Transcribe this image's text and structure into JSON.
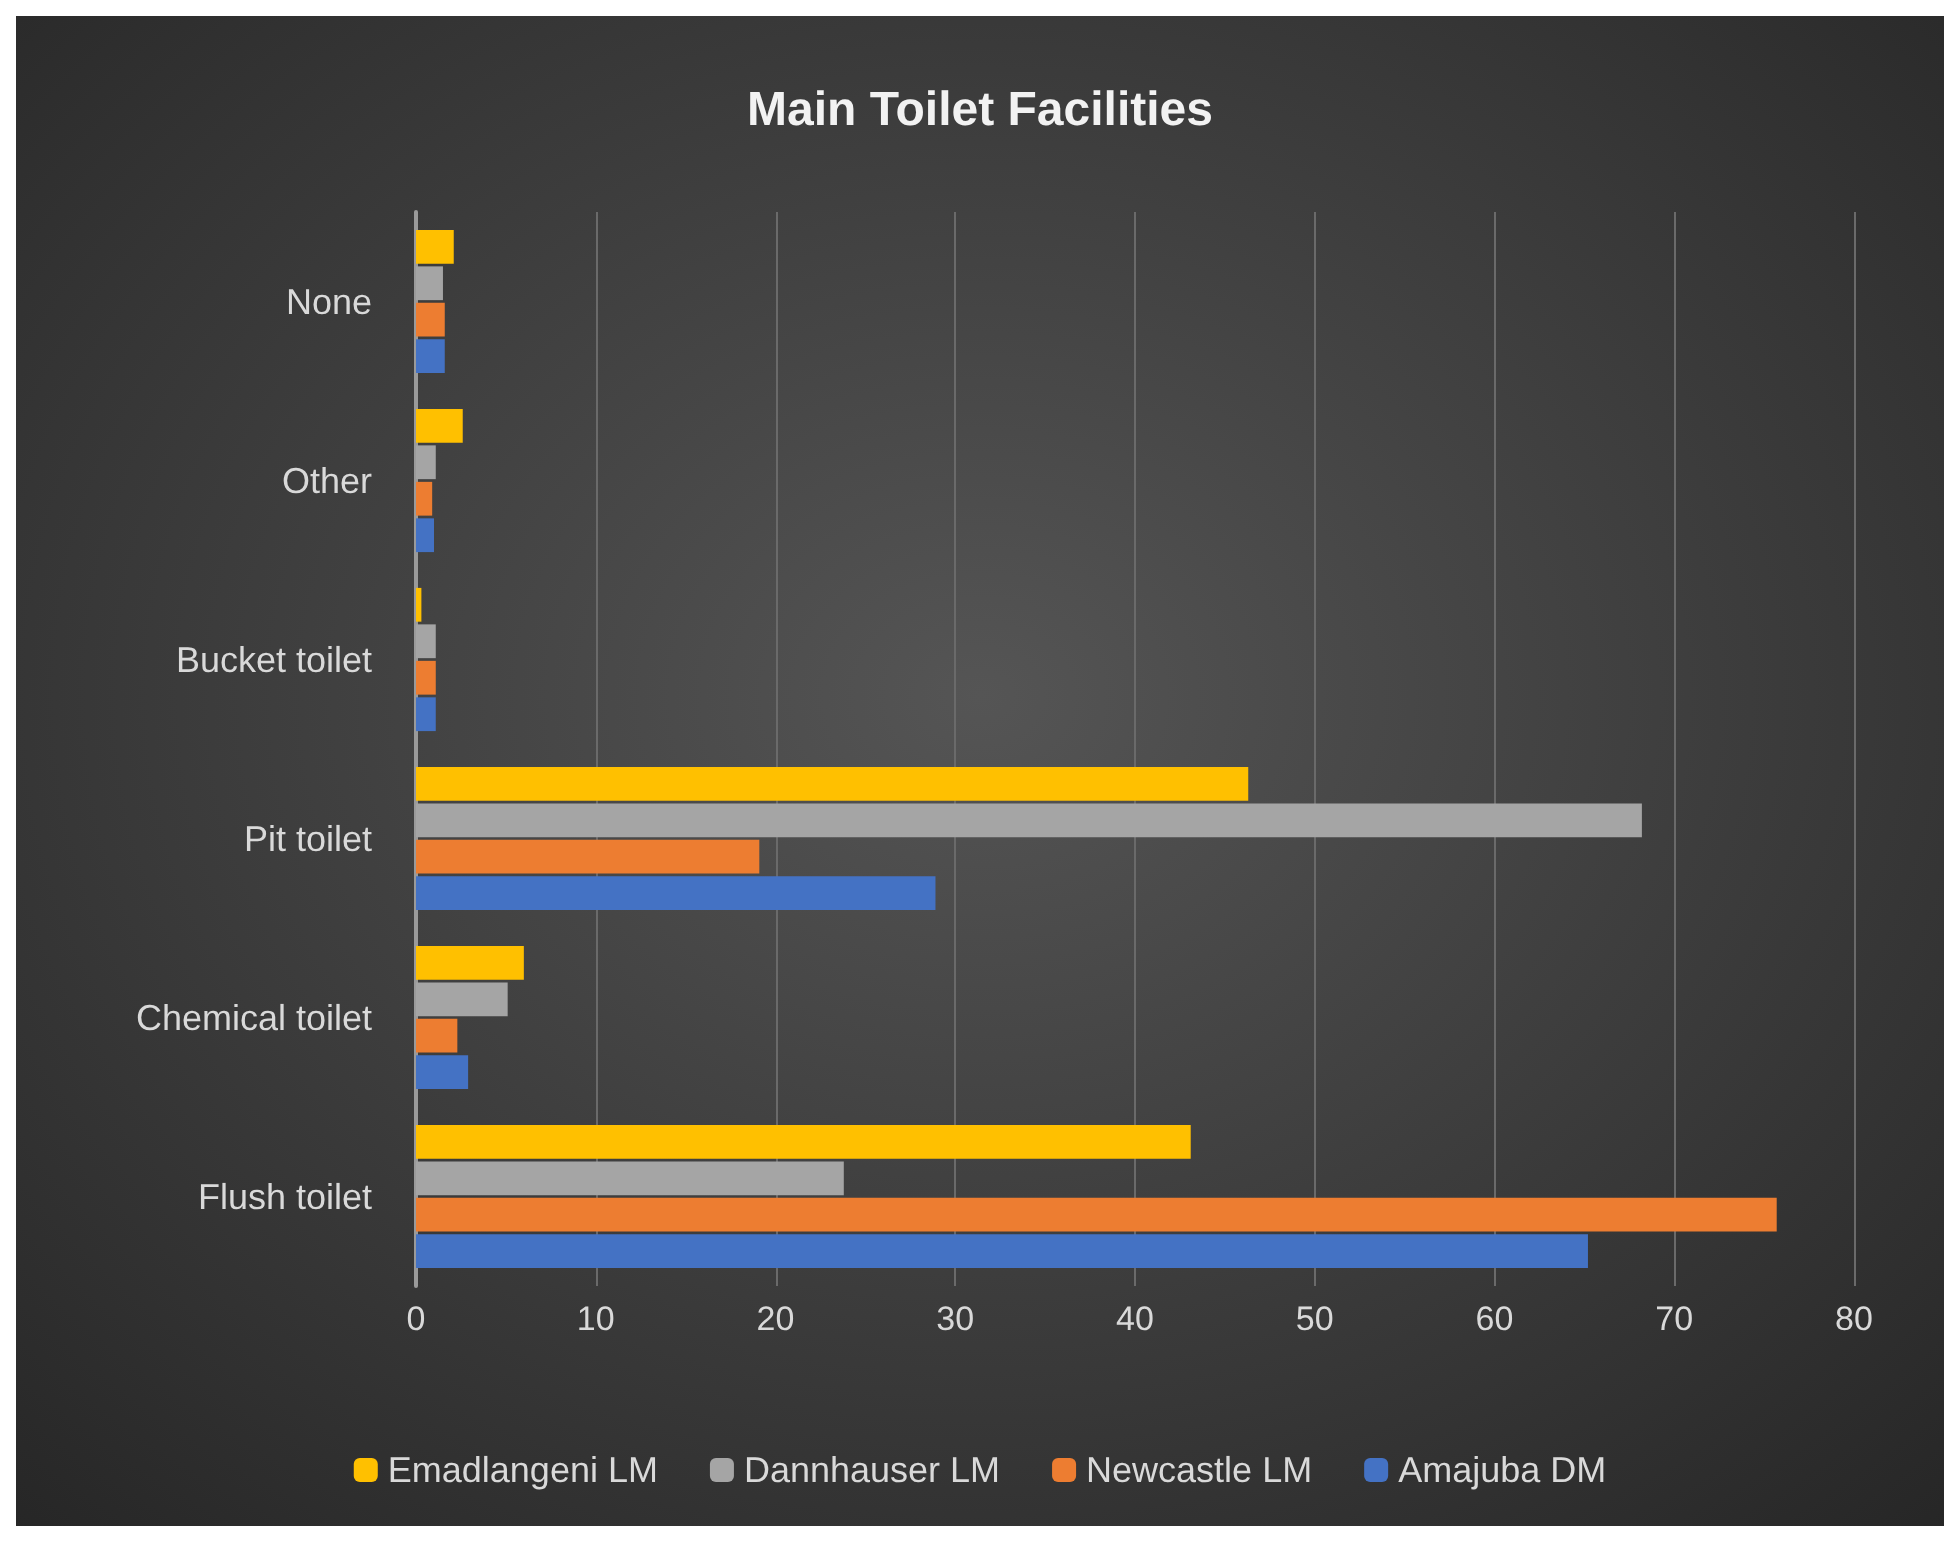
{
  "chart_data": {
    "type": "bar",
    "orientation": "horizontal",
    "title": "Main Toilet Facilities",
    "categories": [
      "None",
      "Other",
      "Bucket toilet",
      "Pit toilet",
      "Chemical toilet",
      "Flush toilet"
    ],
    "series": [
      {
        "name": "Emadlangeni LM",
        "color": "#ffc000",
        "values": [
          2.1,
          2.6,
          0.3,
          46.3,
          6.0,
          43.1
        ]
      },
      {
        "name": "Dannhauser LM",
        "color": "#a5a5a5",
        "values": [
          1.5,
          1.1,
          1.1,
          68.2,
          5.1,
          23.8
        ]
      },
      {
        "name": "Newcastle LM",
        "color": "#ed7d31",
        "values": [
          1.6,
          0.9,
          1.1,
          19.1,
          2.3,
          75.7
        ]
      },
      {
        "name": "Amajuba DM",
        "color": "#4472c4",
        "values": [
          1.6,
          1.0,
          1.1,
          28.9,
          2.9,
          65.2
        ]
      }
    ],
    "xlim": [
      0,
      80
    ],
    "xticks": [
      0,
      10,
      20,
      30,
      40,
      50,
      60,
      70,
      80
    ],
    "grid": "x",
    "legend": "bottom"
  }
}
